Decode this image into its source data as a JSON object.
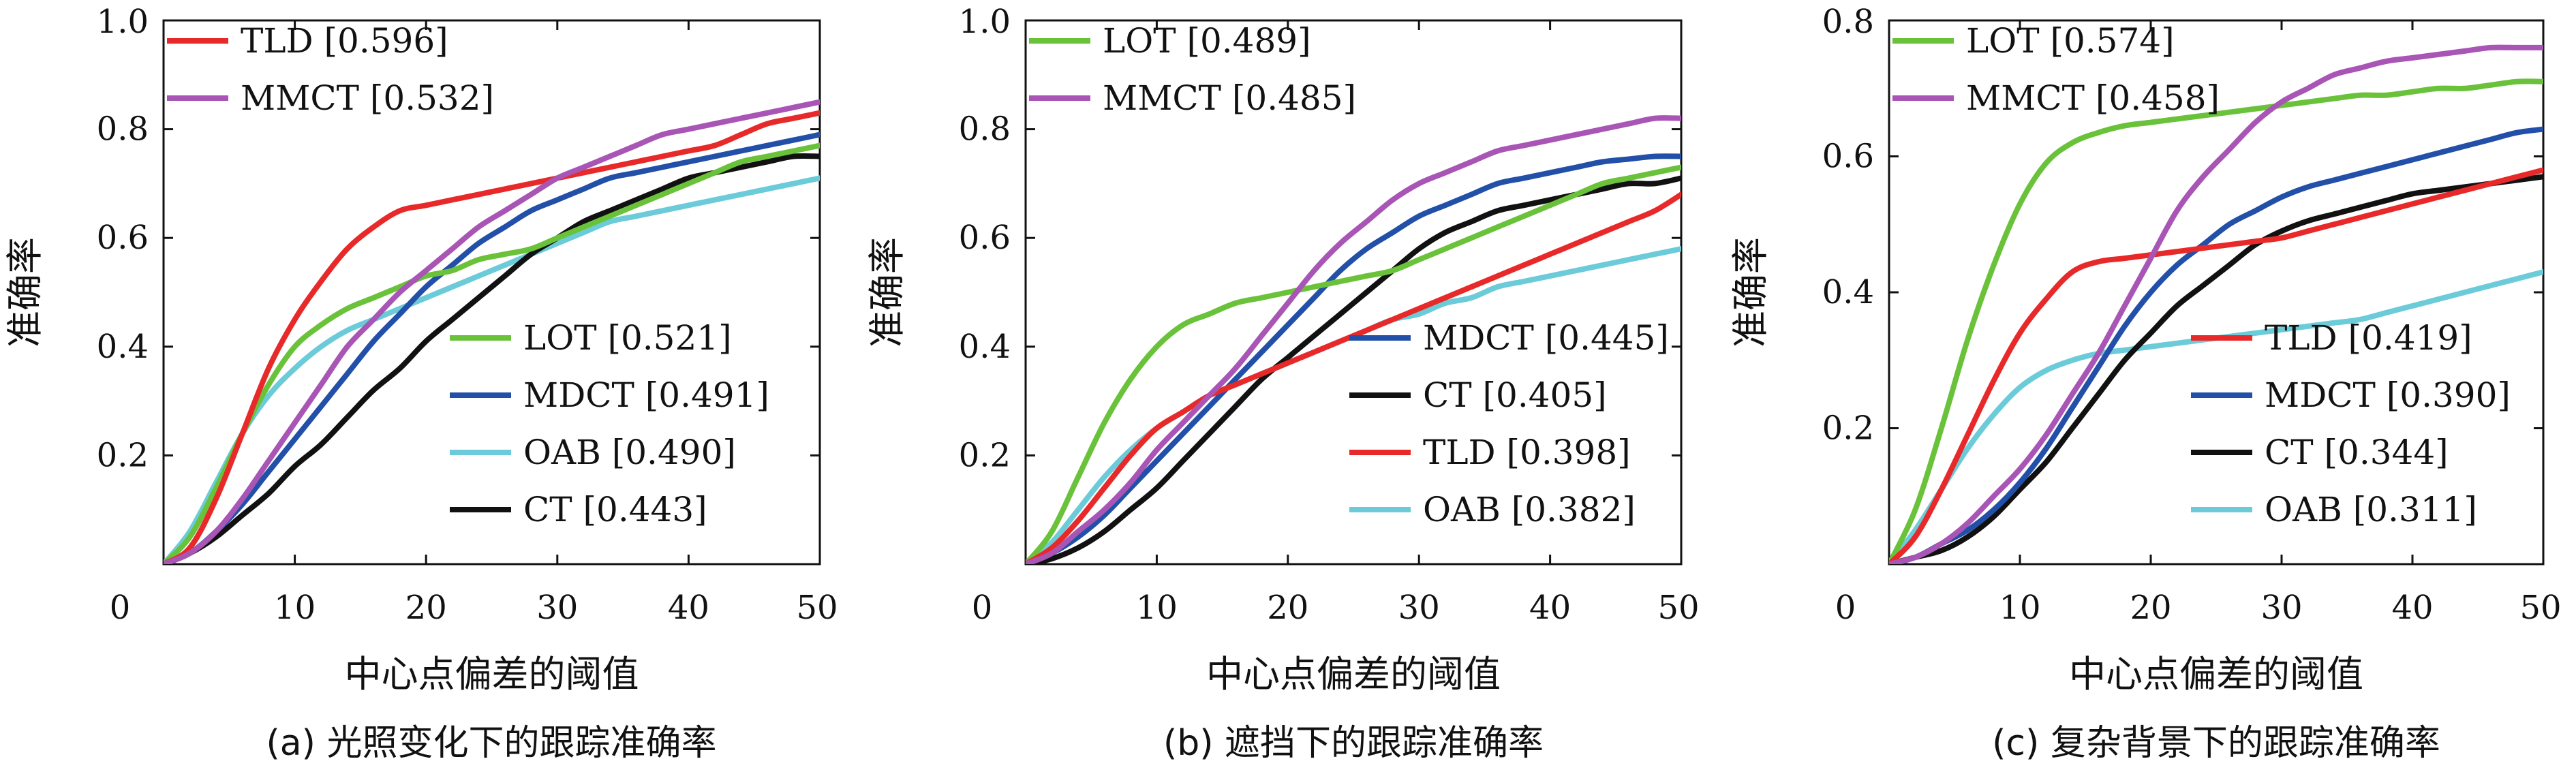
{
  "colors": {
    "LOT": "#6ac23a",
    "MMCT": "#a855b5",
    "TLD": "#e8292a",
    "MDCT": "#2250a8",
    "OAB": "#6ccbd9",
    "CT": "#111111"
  },
  "chart_data": [
    {
      "type": "line",
      "caption": "(a) 光照变化下的跟踪准确率",
      "xlabel": "中心点偏差的阈值",
      "ylabel": "准确率",
      "xlim": [
        0,
        50
      ],
      "ylim": [
        0,
        1.0
      ],
      "xticks": [
        "0",
        "10",
        "20",
        "30",
        "40",
        "50"
      ],
      "yticks": [
        "0.2",
        "0.4",
        "0.6",
        "0.8",
        "1.0"
      ],
      "legend_top": [
        {
          "key": "TLD",
          "label": "TLD [0.596]"
        },
        {
          "key": "MMCT",
          "label": "MMCT [0.532]"
        }
      ],
      "legend_bottom": [
        {
          "key": "LOT",
          "label": "LOT [0.521]"
        },
        {
          "key": "MDCT",
          "label": "MDCT [0.491]"
        },
        {
          "key": "OAB",
          "label": "OAB [0.490]"
        },
        {
          "key": "CT",
          "label": "CT [0.443]"
        }
      ],
      "x": [
        0,
        2,
        4,
        6,
        8,
        10,
        12,
        14,
        16,
        18,
        20,
        22,
        24,
        26,
        28,
        30,
        32,
        34,
        36,
        38,
        40,
        42,
        44,
        46,
        48,
        50
      ],
      "series": [
        {
          "key": "TLD",
          "values": [
            0,
            0.03,
            0.12,
            0.24,
            0.36,
            0.45,
            0.52,
            0.58,
            0.62,
            0.65,
            0.66,
            0.67,
            0.68,
            0.69,
            0.7,
            0.71,
            0.72,
            0.73,
            0.74,
            0.75,
            0.76,
            0.77,
            0.79,
            0.81,
            0.82,
            0.83
          ]
        },
        {
          "key": "MMCT",
          "values": [
            0,
            0.02,
            0.06,
            0.12,
            0.19,
            0.26,
            0.33,
            0.4,
            0.45,
            0.5,
            0.54,
            0.58,
            0.62,
            0.65,
            0.68,
            0.71,
            0.73,
            0.75,
            0.77,
            0.79,
            0.8,
            0.81,
            0.82,
            0.83,
            0.84,
            0.85
          ]
        },
        {
          "key": "LOT",
          "values": [
            0,
            0.05,
            0.14,
            0.24,
            0.33,
            0.4,
            0.44,
            0.47,
            0.49,
            0.51,
            0.53,
            0.54,
            0.56,
            0.57,
            0.58,
            0.6,
            0.62,
            0.64,
            0.66,
            0.68,
            0.7,
            0.72,
            0.74,
            0.75,
            0.76,
            0.77
          ]
        },
        {
          "key": "MDCT",
          "values": [
            0,
            0.02,
            0.06,
            0.11,
            0.17,
            0.23,
            0.29,
            0.35,
            0.41,
            0.46,
            0.51,
            0.55,
            0.59,
            0.62,
            0.65,
            0.67,
            0.69,
            0.71,
            0.72,
            0.73,
            0.74,
            0.75,
            0.76,
            0.77,
            0.78,
            0.79
          ]
        },
        {
          "key": "OAB",
          "values": [
            0,
            0.06,
            0.15,
            0.24,
            0.31,
            0.36,
            0.4,
            0.43,
            0.45,
            0.47,
            0.49,
            0.51,
            0.53,
            0.55,
            0.57,
            0.59,
            0.61,
            0.63,
            0.64,
            0.65,
            0.66,
            0.67,
            0.68,
            0.69,
            0.7,
            0.71
          ]
        },
        {
          "key": "CT",
          "values": [
            0,
            0.02,
            0.05,
            0.09,
            0.13,
            0.18,
            0.22,
            0.27,
            0.32,
            0.36,
            0.41,
            0.45,
            0.49,
            0.53,
            0.57,
            0.6,
            0.63,
            0.65,
            0.67,
            0.69,
            0.71,
            0.72,
            0.73,
            0.74,
            0.75,
            0.75
          ]
        }
      ]
    },
    {
      "type": "line",
      "caption": "(b) 遮挡下的跟踪准确率",
      "xlabel": "中心点偏差的阈值",
      "ylabel": "准确率",
      "xlim": [
        0,
        50
      ],
      "ylim": [
        0,
        1.0
      ],
      "xticks": [
        "0",
        "10",
        "20",
        "30",
        "40",
        "50"
      ],
      "yticks": [
        "0.2",
        "0.4",
        "0.6",
        "0.8",
        "1.0"
      ],
      "legend_top": [
        {
          "key": "LOT",
          "label": "LOT [0.489]"
        },
        {
          "key": "MMCT",
          "label": "MMCT [0.485]"
        }
      ],
      "legend_bottom": [
        {
          "key": "MDCT",
          "label": "MDCT [0.445]"
        },
        {
          "key": "CT",
          "label": "CT [0.405]"
        },
        {
          "key": "TLD",
          "label": "TLD [0.398]"
        },
        {
          "key": "OAB",
          "label": "OAB [0.382]"
        }
      ],
      "x": [
        0,
        2,
        4,
        6,
        8,
        10,
        12,
        14,
        16,
        18,
        20,
        22,
        24,
        26,
        28,
        30,
        32,
        34,
        36,
        38,
        40,
        42,
        44,
        46,
        48,
        50
      ],
      "series": [
        {
          "key": "LOT",
          "values": [
            0,
            0.06,
            0.16,
            0.26,
            0.34,
            0.4,
            0.44,
            0.46,
            0.48,
            0.49,
            0.5,
            0.51,
            0.52,
            0.53,
            0.54,
            0.56,
            0.58,
            0.6,
            0.62,
            0.64,
            0.66,
            0.68,
            0.7,
            0.71,
            0.72,
            0.73
          ]
        },
        {
          "key": "MMCT",
          "values": [
            0,
            0.02,
            0.06,
            0.1,
            0.15,
            0.21,
            0.26,
            0.31,
            0.36,
            0.42,
            0.48,
            0.54,
            0.59,
            0.63,
            0.67,
            0.7,
            0.72,
            0.74,
            0.76,
            0.77,
            0.78,
            0.79,
            0.8,
            0.81,
            0.82,
            0.82
          ]
        },
        {
          "key": "MDCT",
          "values": [
            0,
            0.02,
            0.05,
            0.09,
            0.14,
            0.19,
            0.24,
            0.29,
            0.34,
            0.39,
            0.44,
            0.49,
            0.54,
            0.58,
            0.61,
            0.64,
            0.66,
            0.68,
            0.7,
            0.71,
            0.72,
            0.73,
            0.74,
            0.745,
            0.75,
            0.75
          ]
        },
        {
          "key": "CT",
          "values": [
            0,
            0.01,
            0.03,
            0.06,
            0.1,
            0.14,
            0.19,
            0.24,
            0.29,
            0.34,
            0.38,
            0.42,
            0.46,
            0.5,
            0.54,
            0.58,
            0.61,
            0.63,
            0.65,
            0.66,
            0.67,
            0.68,
            0.69,
            0.7,
            0.7,
            0.71
          ]
        },
        {
          "key": "TLD",
          "values": [
            0,
            0.03,
            0.08,
            0.14,
            0.2,
            0.25,
            0.28,
            0.31,
            0.33,
            0.35,
            0.37,
            0.39,
            0.41,
            0.43,
            0.45,
            0.47,
            0.49,
            0.51,
            0.53,
            0.55,
            0.57,
            0.59,
            0.61,
            0.63,
            0.65,
            0.68
          ]
        },
        {
          "key": "OAB",
          "values": [
            0,
            0.04,
            0.1,
            0.16,
            0.21,
            0.25,
            0.28,
            0.31,
            0.33,
            0.35,
            0.37,
            0.39,
            0.41,
            0.43,
            0.45,
            0.46,
            0.48,
            0.49,
            0.51,
            0.52,
            0.53,
            0.54,
            0.55,
            0.56,
            0.57,
            0.58
          ]
        }
      ]
    },
    {
      "type": "line",
      "caption": "(c) 复杂背景下的跟踪准确率",
      "xlabel": "中心点偏差的阈值",
      "ylabel": "准确率",
      "xlim": [
        0,
        50
      ],
      "ylim": [
        0,
        0.8
      ],
      "xticks": [
        "0",
        "10",
        "20",
        "30",
        "40",
        "50"
      ],
      "yticks": [
        "0.2",
        "0.4",
        "0.6",
        "0.8"
      ],
      "legend_top": [
        {
          "key": "LOT",
          "label": "LOT [0.574]"
        },
        {
          "key": "MMCT",
          "label": "MMCT [0.458]"
        }
      ],
      "legend_bottom": [
        {
          "key": "TLD",
          "label": "TLD [0.419]"
        },
        {
          "key": "MDCT",
          "label": "MDCT [0.390]"
        },
        {
          "key": "CT",
          "label": "CT [0.344]"
        },
        {
          "key": "OAB",
          "label": "OAB [0.311]"
        }
      ],
      "x": [
        0,
        2,
        4,
        6,
        8,
        10,
        12,
        14,
        16,
        18,
        20,
        22,
        24,
        26,
        28,
        30,
        32,
        34,
        36,
        38,
        40,
        42,
        44,
        46,
        48,
        50
      ],
      "series": [
        {
          "key": "LOT",
          "values": [
            0,
            0.08,
            0.2,
            0.33,
            0.44,
            0.53,
            0.59,
            0.62,
            0.635,
            0.645,
            0.65,
            0.655,
            0.66,
            0.665,
            0.67,
            0.675,
            0.68,
            0.685,
            0.69,
            0.69,
            0.695,
            0.7,
            0.7,
            0.705,
            0.71,
            0.71
          ]
        },
        {
          "key": "MMCT",
          "values": [
            0,
            0.01,
            0.03,
            0.06,
            0.1,
            0.14,
            0.19,
            0.25,
            0.31,
            0.38,
            0.45,
            0.52,
            0.57,
            0.61,
            0.65,
            0.68,
            0.7,
            0.72,
            0.73,
            0.74,
            0.745,
            0.75,
            0.755,
            0.76,
            0.76,
            0.76
          ]
        },
        {
          "key": "TLD",
          "values": [
            0,
            0.04,
            0.11,
            0.19,
            0.27,
            0.34,
            0.39,
            0.43,
            0.445,
            0.45,
            0.455,
            0.46,
            0.465,
            0.47,
            0.475,
            0.48,
            0.49,
            0.5,
            0.51,
            0.52,
            0.53,
            0.54,
            0.55,
            0.56,
            0.57,
            0.58
          ]
        },
        {
          "key": "MDCT",
          "values": [
            0,
            0.01,
            0.03,
            0.05,
            0.08,
            0.12,
            0.17,
            0.23,
            0.29,
            0.35,
            0.4,
            0.44,
            0.47,
            0.5,
            0.52,
            0.54,
            0.555,
            0.565,
            0.575,
            0.585,
            0.595,
            0.605,
            0.615,
            0.625,
            0.635,
            0.64
          ]
        },
        {
          "key": "CT",
          "values": [
            0,
            0.01,
            0.02,
            0.04,
            0.07,
            0.11,
            0.15,
            0.2,
            0.25,
            0.3,
            0.34,
            0.38,
            0.41,
            0.44,
            0.47,
            0.49,
            0.505,
            0.515,
            0.525,
            0.535,
            0.545,
            0.55,
            0.555,
            0.56,
            0.565,
            0.57
          ]
        },
        {
          "key": "OAB",
          "values": [
            0,
            0.05,
            0.11,
            0.17,
            0.22,
            0.26,
            0.285,
            0.3,
            0.31,
            0.315,
            0.32,
            0.325,
            0.33,
            0.335,
            0.34,
            0.345,
            0.35,
            0.355,
            0.36,
            0.37,
            0.38,
            0.39,
            0.4,
            0.41,
            0.42,
            0.43
          ]
        }
      ]
    }
  ]
}
